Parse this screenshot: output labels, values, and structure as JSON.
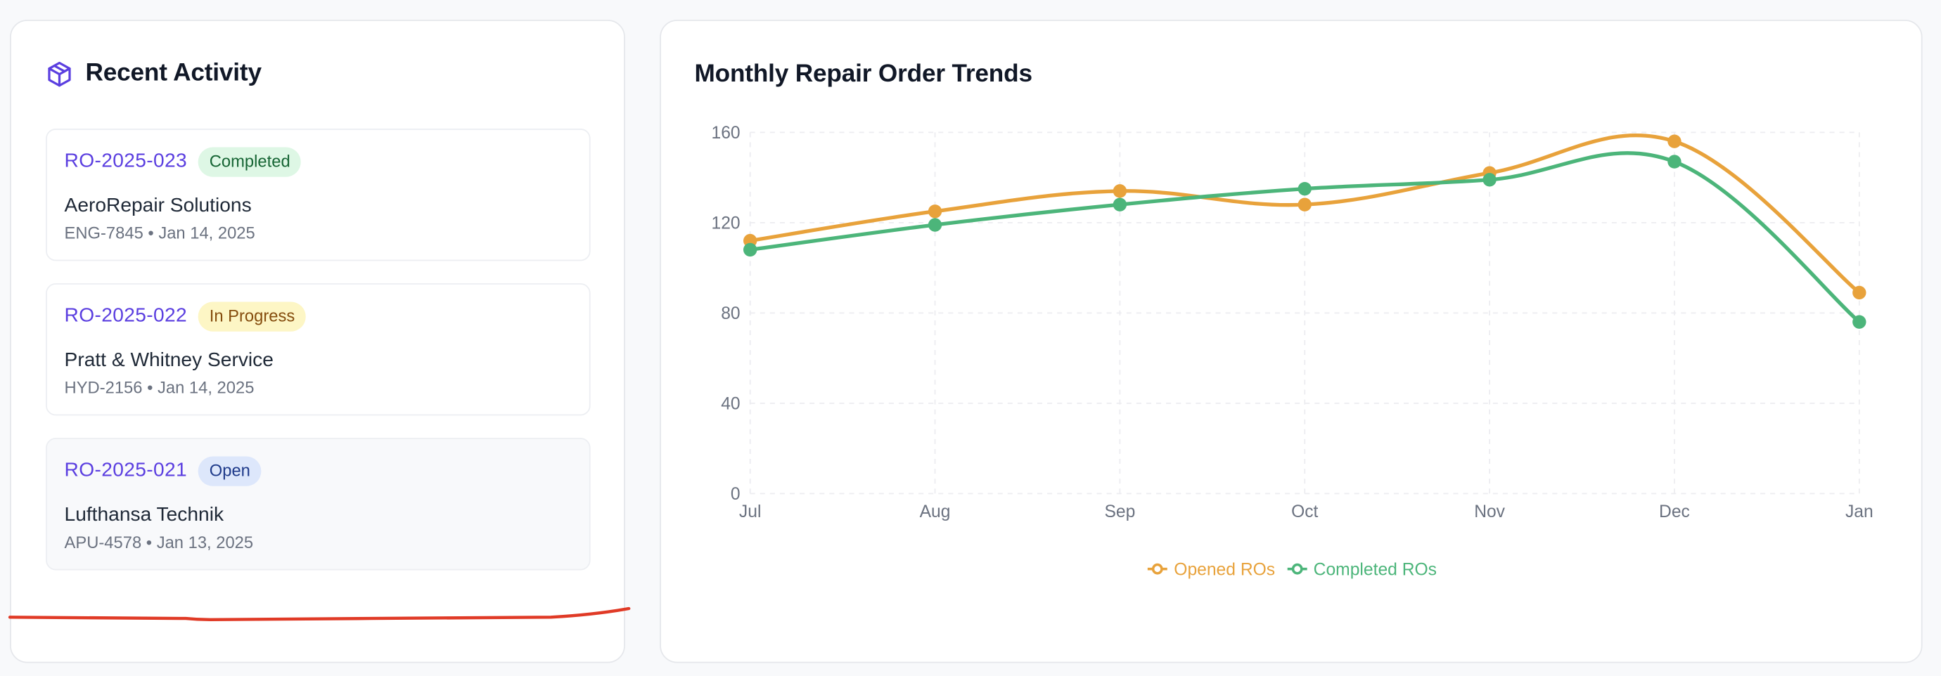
{
  "recent_activity": {
    "title": "Recent Activity",
    "icon": "package-icon",
    "items": [
      {
        "ro": "RO-2025-023",
        "status": "Completed",
        "company": "AeroRepair Solutions",
        "meta": "ENG-7845 • Jan 14, 2025"
      },
      {
        "ro": "RO-2025-022",
        "status": "In Progress",
        "company": "Pratt & Whitney Service",
        "meta": "HYD-2156 • Jan 14, 2025"
      },
      {
        "ro": "RO-2025-021",
        "status": "Open",
        "company": "Lufthansa Technik",
        "meta": "APU-4578 • Jan 13, 2025"
      }
    ]
  },
  "chart_card": {
    "title": "Monthly Repair Order Trends"
  },
  "chart_data": {
    "type": "line",
    "title": "Monthly Repair Order Trends",
    "x": [
      "Jul",
      "Aug",
      "Sep",
      "Oct",
      "Nov",
      "Dec",
      "Jan"
    ],
    "y_ticks": [
      0,
      40,
      80,
      120,
      160
    ],
    "ylim": [
      0,
      160
    ],
    "grid": true,
    "legend_position": "bottom",
    "series": [
      {
        "name": "Opened ROs",
        "color": "#e8a23b",
        "values": [
          112,
          125,
          134,
          128,
          142,
          156,
          89
        ]
      },
      {
        "name": "Completed ROs",
        "color": "#4cb57a",
        "values": [
          108,
          119,
          128,
          135,
          139,
          147,
          76
        ]
      }
    ]
  },
  "colors": {
    "accent": "#5b3fe0",
    "annotation_stroke": "#e03a26"
  }
}
